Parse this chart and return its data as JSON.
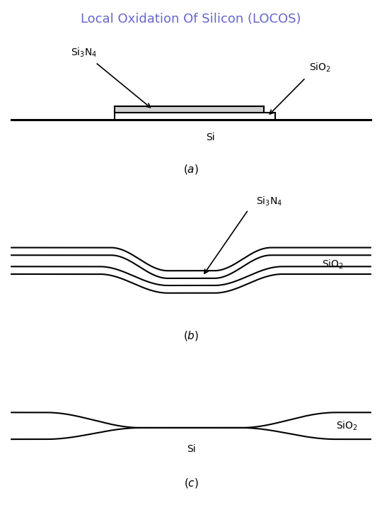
{
  "title": "Local Oxidation Of Silicon (LOCOS)",
  "title_color": "#6666cc",
  "title_fontsize": 13,
  "background_color": "#ffffff",
  "line_color": "#000000",
  "lw": 1.5,
  "lw_thick": 2.2
}
